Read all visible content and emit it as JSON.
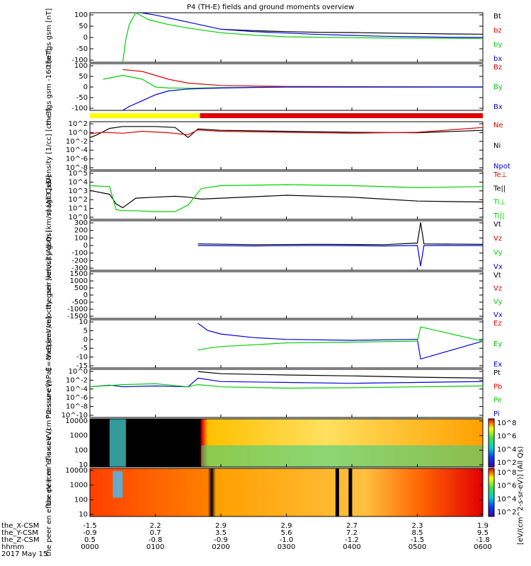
{
  "title": "P4 (TH-E) fields and ground moments overview",
  "date_label": "2017 May 15",
  "colorbar_label": "[eV/(cm^2-s-sr-eV)] (All Qs)",
  "x_rows": [
    {
      "label": "the_X-CSM",
      "values": [
        "-1.5",
        "2.2",
        "2.9",
        "2.9",
        "2.7",
        "2.3",
        "1.9"
      ]
    },
    {
      "label": "the_Y-CSM",
      "values": [
        "-0.9",
        "0.7",
        "3.5",
        "5.6",
        "7.2",
        "8.5",
        "9.5"
      ]
    },
    {
      "label": "the_Z-CSM",
      "values": [
        "0.5",
        "-0.8",
        "-0.9",
        "-1.0",
        "-1.2",
        "-1.5",
        "-1.8"
      ]
    },
    {
      "label": "hhmm",
      "values": [
        "0000",
        "0100",
        "0200",
        "0300",
        "0400",
        "0500",
        "0600"
      ]
    }
  ],
  "colors": {
    "black": "#000000",
    "red": "#e00000",
    "green": "#00d000",
    "blue": "#0000e0",
    "yellow": "#ffff00"
  },
  "chart_data": [
    {
      "type": "line",
      "ylabel": "the fgs gsm [nT]",
      "yticks": [
        "100",
        "50",
        "0",
        "-50",
        "-100"
      ],
      "legend": [
        "Bt",
        "bz",
        "by",
        "bx"
      ],
      "legend_colors": [
        "black",
        "red",
        "green",
        "blue"
      ],
      "ylim": [
        -100,
        110
      ],
      "series": [
        {
          "name": "Bt",
          "color": "black",
          "x": [
            0.0,
            0.5,
            1.0,
            1.5,
            2.0,
            2.5,
            3.0,
            3.5,
            4.0,
            4.5,
            5.0,
            5.5,
            6.0
          ],
          "y": [
            null,
            null,
            null,
            null,
            40,
            34,
            30,
            27,
            26,
            24,
            22,
            20,
            19
          ]
        },
        {
          "name": "bx",
          "color": "blue",
          "x": [
            0.78,
            1.0,
            1.5,
            2.0,
            2.5,
            3.0,
            3.5,
            4.0,
            4.5,
            5.0,
            5.5,
            6.0
          ],
          "y": [
            110,
            100,
            70,
            40,
            30,
            24,
            18,
            14,
            10,
            8,
            6,
            5
          ]
        },
        {
          "name": "by",
          "color": "green",
          "x": [
            0.5,
            0.55,
            0.6,
            0.7,
            0.9,
            1.2,
            1.5,
            2.0,
            2.5,
            3.0,
            4.0,
            5.0,
            6.0
          ],
          "y": [
            -100,
            0,
            60,
            110,
            80,
            60,
            45,
            25,
            15,
            8,
            4,
            2,
            1
          ]
        }
      ]
    },
    {
      "type": "line",
      "ylabel": "the fgs gsm -160 [nT]",
      "yticks": [
        "100",
        "50",
        "0",
        "-50",
        "-100"
      ],
      "legend": [
        "Bz",
        "By",
        "Bx"
      ],
      "legend_colors": [
        "red",
        "green",
        "blue"
      ],
      "ylim": [
        -120,
        120
      ],
      "series": [
        {
          "name": "Bz",
          "color": "red",
          "x": [
            0.5,
            0.8,
            1.0,
            1.2,
            1.5,
            2.0,
            2.5,
            3.0,
            4.0,
            5.0,
            6.0
          ],
          "y": [
            90,
            80,
            60,
            40,
            20,
            8,
            5,
            3,
            2,
            1,
            0
          ]
        },
        {
          "name": "By",
          "color": "green",
          "x": [
            0.2,
            0.5,
            0.8,
            1.0,
            1.2,
            1.5,
            2.0,
            3.0,
            4.0,
            5.0,
            6.0
          ],
          "y": [
            40,
            60,
            40,
            0,
            -5,
            -6,
            -3,
            0,
            0,
            0,
            0
          ]
        },
        {
          "name": "Bx",
          "color": "blue",
          "x": [
            0.5,
            0.6,
            0.8,
            1.0,
            1.2,
            1.5,
            2.0,
            2.5,
            3.0,
            4.0,
            6.0
          ],
          "y": [
            -120,
            -100,
            -70,
            -40,
            -20,
            -10,
            -5,
            -2,
            0,
            0,
            0
          ]
        }
      ]
    },
    {
      "type": "line",
      "ylabel": "Density [1/cc] [cm-3]",
      "yticks": [
        "10^2",
        "10^0",
        "10^-2",
        "10^-4",
        "10^-6",
        "10^-8"
      ],
      "legend": [
        "Ne",
        "Ni",
        "Npot"
      ],
      "legend_colors": [
        "red",
        "black",
        "blue"
      ],
      "ylim": [
        -8,
        2
      ],
      "yscale": "log",
      "series": [
        {
          "name": "Ni",
          "color": "black",
          "x": [
            0.0,
            0.1,
            0.3,
            0.5,
            1.0,
            1.3,
            1.5,
            1.65,
            2.0,
            3.0,
            4.0,
            5.0,
            6.0
          ],
          "y": [
            -1.3,
            -0.8,
            0.6,
            1.0,
            1.0,
            0.8,
            -1.3,
            0.5,
            0.2,
            0.0,
            -0.2,
            -0.3,
            0.2
          ]
        },
        {
          "name": "Ne",
          "color": "red",
          "x": [
            0.0,
            0.2,
            0.5,
            0.8,
            1.2,
            1.5,
            1.65,
            2.0,
            3.0,
            4.0,
            5.0,
            6.0
          ],
          "y": [
            -0.5,
            -0.2,
            -0.4,
            0.0,
            -0.3,
            -0.7,
            0.3,
            0.0,
            -0.2,
            -0.4,
            -0.2,
            0.8
          ]
        }
      ]
    },
    {
      "type": "line",
      "ylabel": "magt3 [eV]",
      "yticks": [
        "10^5",
        "10^4",
        "10^3",
        "10^2",
        "10^1",
        "10^0"
      ],
      "legend": [
        "Te⊥",
        "Te||",
        "Ti⊥",
        "Ti||"
      ],
      "legend_colors": [
        "red",
        "black",
        "green",
        "green"
      ],
      "ylim": [
        0,
        5
      ],
      "yscale": "log",
      "series": [
        {
          "name": "Te||",
          "color": "black",
          "x": [
            0.0,
            0.3,
            0.4,
            0.5,
            0.7,
            1.0,
            1.3,
            1.5,
            1.7,
            2.0,
            3.0,
            4.0,
            5.0,
            6.0
          ],
          "y": [
            3.0,
            2.6,
            1.6,
            1.2,
            2.2,
            2.3,
            2.4,
            2.3,
            2.1,
            2.2,
            2.5,
            2.3,
            1.9,
            1.8
          ]
        },
        {
          "name": "Ti||",
          "color": "green",
          "x": [
            0.0,
            0.3,
            0.4,
            0.5,
            0.7,
            1.0,
            1.3,
            1.5,
            1.7,
            2.0,
            3.0,
            4.0,
            5.0,
            6.0
          ],
          "y": [
            3.5,
            3.4,
            1.0,
            0.9,
            0.9,
            0.8,
            0.8,
            1.5,
            3.2,
            3.5,
            3.6,
            3.5,
            3.3,
            3.4
          ]
        }
      ]
    },
    {
      "type": "line",
      "ylabel": "the peir velocity gsm [km/s] (All Qs)",
      "yticks": [
        "300",
        "200",
        "100",
        "0",
        "-100",
        "-200",
        "-300"
      ],
      "legend": [
        "Vt",
        "Vz",
        "Vy",
        "Vx"
      ],
      "legend_colors": [
        "black",
        "red",
        "green",
        "blue"
      ],
      "ylim": [
        -300,
        300
      ],
      "series": [
        {
          "name": "Vt",
          "color": "black",
          "x": [
            1.65,
            2.5,
            3.5,
            4.5,
            5.0,
            5.05,
            5.1,
            6.0
          ],
          "y": [
            20,
            10,
            15,
            10,
            30,
            280,
            20,
            15
          ]
        },
        {
          "name": "Vx",
          "color": "blue",
          "x": [
            1.65,
            2.5,
            3.5,
            4.5,
            5.0,
            5.05,
            5.1,
            6.0
          ],
          "y": [
            0,
            -5,
            0,
            -5,
            0,
            -250,
            0,
            0
          ]
        }
      ]
    },
    {
      "type": "line",
      "ylabel": "the peer velocity gsm [km/s] (All Qs)",
      "yticks": [
        "1500",
        "1000",
        "500",
        "0",
        "-500",
        "-1000",
        "-1500"
      ],
      "legend": [
        "Vt",
        "Vz",
        "Vy",
        "Vx"
      ],
      "legend_colors": [
        "black",
        "red",
        "green",
        "blue"
      ],
      "ylim": [
        -1500,
        1500
      ],
      "series": []
    },
    {
      "type": "line",
      "ylabel": "E=-VxB [mV/m]",
      "yticks": [
        "10",
        "5",
        "0",
        "-5",
        "-10",
        "-15"
      ],
      "legend": [
        "Ez",
        "Ey",
        "Ex"
      ],
      "legend_colors": [
        "red",
        "green",
        "blue"
      ],
      "ylim": [
        -15,
        12
      ],
      "series": [
        {
          "name": "Ex",
          "color": "blue",
          "x": [
            1.65,
            1.8,
            2.0,
            2.5,
            3.0,
            4.0,
            5.0,
            5.05,
            6.0
          ],
          "y": [
            10,
            6,
            4,
            2,
            1,
            0.5,
            1,
            -10,
            0
          ]
        },
        {
          "name": "Ey",
          "color": "green",
          "x": [
            1.65,
            1.8,
            2.0,
            2.5,
            3.0,
            4.0,
            5.0,
            5.05,
            6.0
          ],
          "y": [
            -5,
            -4,
            -3,
            -2,
            -1,
            -0.5,
            0,
            8,
            0
          ]
        }
      ]
    },
    {
      "type": "line",
      "ylabel": "Pressure [nPa]",
      "yticks": [
        "10^0",
        "10^-2",
        "10^-4",
        "10^-6",
        "10^-8",
        "10^-10"
      ],
      "legend": [
        "Pt",
        "Pb",
        "Pe",
        "Pi"
      ],
      "legend_colors": [
        "black",
        "red",
        "green",
        "blue"
      ],
      "ylim": [
        -10,
        1
      ],
      "yscale": "log",
      "series": [
        {
          "name": "Pt",
          "color": "black",
          "x": [
            1.65,
            2.0,
            3.0,
            4.0,
            5.0,
            6.0
          ],
          "y": [
            0.5,
            0.0,
            -0.3,
            -0.5,
            -0.8,
            -1.0
          ]
        },
        {
          "name": "Pi",
          "color": "blue",
          "x": [
            0.0,
            0.3,
            0.5,
            1.0,
            1.5,
            1.65,
            2.0,
            3.0,
            4.0,
            5.0,
            6.0
          ],
          "y": [
            -3.0,
            -2.6,
            -3.0,
            -2.8,
            -3.0,
            -1.0,
            -1.8,
            -2.0,
            -2.2,
            -2.0,
            -1.8
          ]
        },
        {
          "name": "Pe",
          "color": "green",
          "x": [
            0.0,
            0.5,
            1.0,
            1.5,
            1.65,
            2.0,
            3.0,
            4.0,
            5.0,
            6.0
          ],
          "y": [
            -3.0,
            -2.5,
            -2.3,
            -3.0,
            -2.5,
            -3.0,
            -3.3,
            -3.2,
            -3.0,
            -2.8
          ]
        }
      ]
    },
    {
      "type": "heatmap",
      "ylabel": "the peir en eflux eV (cm^2-s-sr-eV)",
      "yticks": [
        "10000",
        "1000",
        "100",
        "10"
      ]
    },
    {
      "type": "heatmap",
      "ylabel": "the peer en eflux eV (cm^2-s-sr-eV)",
      "yticks": [
        "10000",
        "1000",
        "100",
        "10"
      ]
    }
  ],
  "colorbar_ticks": [
    "10^8",
    "10^6",
    "10^4",
    "10^2",
    "10^8",
    "10^6",
    "10^4",
    "10^2"
  ]
}
